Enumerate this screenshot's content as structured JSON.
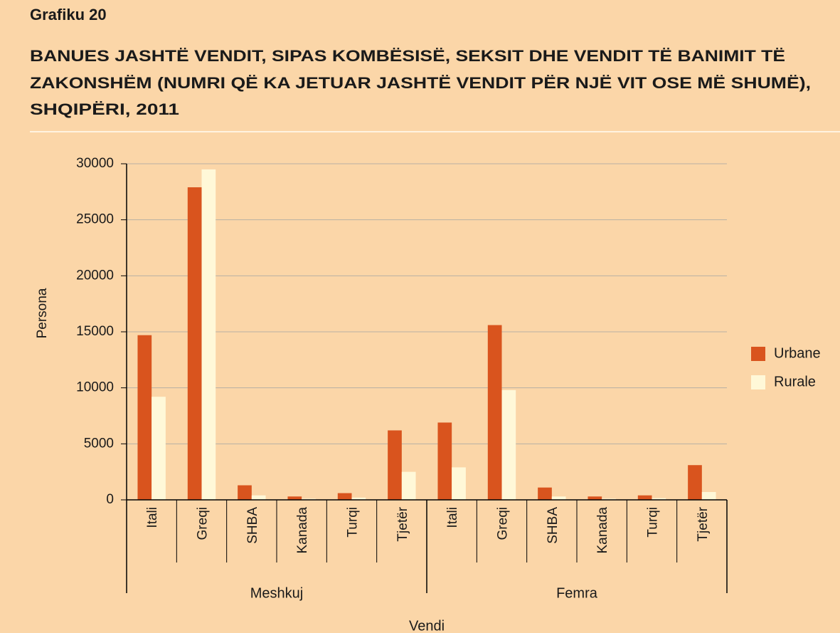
{
  "chart_data": {
    "type": "bar",
    "figure_label": "Grafiku 20",
    "title": [
      "BANUES JASHTË VENDIT, SIPAS KOMBËSISË, SEKSIT DHE VENDIT TË BANIMIT TË",
      "ZAKONSHËM (NUMRI QË KA JETUAR JASHTË VENDIT PËR NJË VIT OSE MË SHUMË),",
      "SHQIPËRI, 2011"
    ],
    "ylabel": "Persona",
    "xlabel": "Vendi",
    "groups": [
      {
        "label": "Meshkuj",
        "categories": [
          "Itali",
          "Greqi",
          "SHBA",
          "Kanada",
          "Turqi",
          "Tjetër"
        ]
      },
      {
        "label": "Femra",
        "categories": [
          "Itali",
          "Greqi",
          "SHBA",
          "Kanada",
          "Turqi",
          "Tjetër"
        ]
      }
    ],
    "series": [
      {
        "name": "Urbane",
        "color": "#d9541e",
        "values": [
          14700,
          27900,
          1300,
          300,
          600,
          6200,
          6900,
          15600,
          1100,
          300,
          400,
          3100
        ]
      },
      {
        "name": "Rurale",
        "color": "#fff8d8",
        "values": [
          9200,
          29500,
          400,
          100,
          200,
          2500,
          2900,
          9800,
          300,
          100,
          150,
          700
        ]
      }
    ],
    "ylim": [
      0,
      30000
    ],
    "yticks": [
      0,
      5000,
      10000,
      15000,
      20000,
      25000,
      30000
    ],
    "grid": true,
    "legend": "right"
  }
}
